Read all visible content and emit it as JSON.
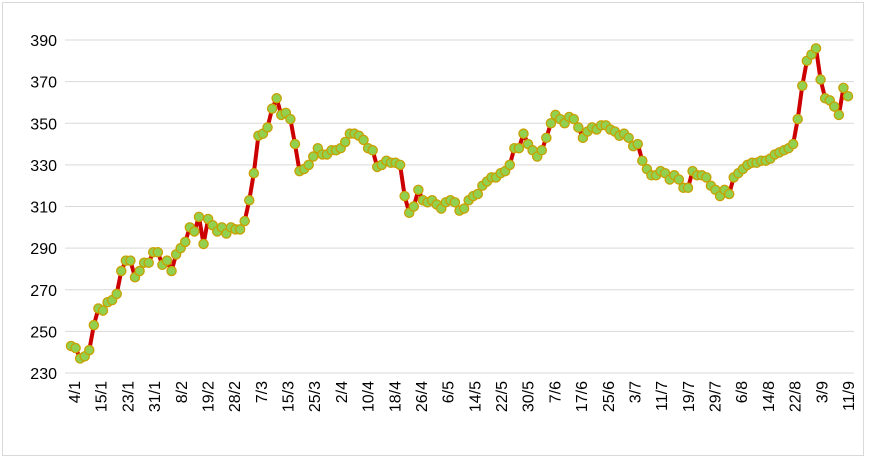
{
  "chart_data": {
    "type": "line",
    "title": "",
    "xlabel": "",
    "ylabel": "",
    "ylim": [
      230,
      390
    ],
    "yticks": [
      230,
      250,
      270,
      290,
      310,
      330,
      350,
      370,
      390
    ],
    "grid": "horizontal",
    "legend": "none",
    "colors": {
      "line": "#cc0000",
      "marker_fill": "#92d050",
      "marker_edge": "#c8a000",
      "grid": "#d9d9d9"
    },
    "x_tick_labels": [
      "4/1",
      "15/1",
      "23/1",
      "31/1",
      "8/2",
      "19/2",
      "28/2",
      "7/3",
      "15/3",
      "25/3",
      "2/4",
      "10/4",
      "18/4",
      "26/4",
      "6/5",
      "14/5",
      "22/5",
      "30/5",
      "7/6",
      "17/6",
      "25/6",
      "3/7",
      "11/7",
      "19/7",
      "29/7",
      "6/8",
      "14/8",
      "22/8",
      "3/9",
      "11/9"
    ],
    "series": [
      {
        "values": [
          243,
          242,
          237,
          238,
          241,
          253,
          261,
          260,
          264,
          265,
          268,
          279,
          284,
          284,
          276,
          279,
          283,
          283,
          288,
          288,
          282,
          284,
          279,
          287,
          290,
          293,
          300,
          298,
          305,
          292,
          304,
          301,
          298,
          300,
          297,
          300,
          299,
          299,
          303,
          313,
          326,
          344,
          345,
          348,
          357,
          362,
          354,
          355,
          352,
          340,
          327,
          328,
          330,
          334,
          338,
          335,
          335,
          337,
          337,
          338,
          341,
          345,
          345,
          344,
          342,
          338,
          337,
          329,
          330,
          332,
          331,
          331,
          330,
          315,
          307,
          310,
          318,
          313,
          312,
          313,
          311,
          309,
          312,
          313,
          312,
          308,
          309,
          313,
          315,
          316,
          320,
          322,
          324,
          324,
          326,
          327,
          330,
          338,
          338,
          345,
          340,
          337,
          334,
          337,
          343,
          350,
          354,
          352,
          350,
          353,
          352,
          348,
          343,
          346,
          348,
          347,
          349,
          349,
          347,
          346,
          344,
          345,
          343,
          339,
          340,
          332,
          328,
          325,
          325,
          327,
          326,
          323,
          325,
          323,
          319,
          319,
          327,
          325,
          325,
          324,
          320,
          318,
          315,
          318,
          316,
          324,
          326,
          328,
          330,
          331,
          331,
          332,
          332,
          333,
          335,
          336,
          337,
          338,
          340,
          352,
          368,
          380,
          383,
          386,
          371,
          362,
          361,
          358,
          354,
          367,
          363
        ]
      }
    ]
  }
}
